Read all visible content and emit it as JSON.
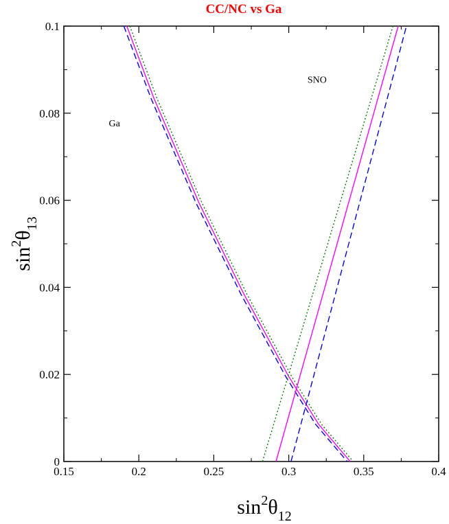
{
  "chart_data": {
    "type": "line",
    "title": "CC/NC vs Ga",
    "title_color": "#ff0000",
    "xlabel": {
      "base": "sin",
      "sup": "2",
      "sym": "θ",
      "sub": "12"
    },
    "ylabel": {
      "base": "sin",
      "sup": "2",
      "sym": "θ",
      "sub": "13"
    },
    "xlim": [
      0.15,
      0.4
    ],
    "ylim": [
      0,
      0.1
    ],
    "x_ticks": [
      0.15,
      0.2,
      0.25,
      0.3,
      0.35,
      0.4
    ],
    "x_tick_labels": [
      "0.15",
      "0.2",
      "0.25",
      "0.3",
      "0.35",
      "0.4"
    ],
    "y_ticks": [
      0,
      0.02,
      0.04,
      0.06,
      0.08,
      0.1
    ],
    "y_tick_labels": [
      "0",
      "0.02",
      "0.04",
      "0.06",
      "0.08",
      "0.1"
    ],
    "grid": false,
    "annotations": [
      {
        "text": "SNO",
        "x": 0.3125,
        "y": 0.087
      },
      {
        "text": "Ga",
        "x": 0.18,
        "y": 0.077
      }
    ],
    "series": [
      {
        "group": "Ga",
        "style": "solid",
        "color": "#ff00ff",
        "x": [
          0.192,
          0.21,
          0.24,
          0.27,
          0.3,
          0.32,
          0.341
        ],
        "y": [
          0.1,
          0.0835,
          0.0595,
          0.0385,
          0.0195,
          0.0085,
          0.0
        ]
      },
      {
        "group": "Ga",
        "style": "dashed",
        "color": "#0000ff",
        "x": [
          0.19,
          0.208,
          0.238,
          0.268,
          0.298,
          0.318,
          0.339
        ],
        "y": [
          0.1,
          0.0835,
          0.0595,
          0.0385,
          0.0195,
          0.0085,
          0.0
        ]
      },
      {
        "group": "Ga",
        "style": "dotted",
        "color": "#008000",
        "x": [
          0.194,
          0.212,
          0.242,
          0.272,
          0.302,
          0.322,
          0.343
        ],
        "y": [
          0.1,
          0.0835,
          0.0595,
          0.0385,
          0.0195,
          0.0085,
          0.0
        ]
      },
      {
        "group": "SNO",
        "style": "solid",
        "color": "#ff00ff",
        "x": [
          0.2915,
          0.373
        ],
        "y": [
          0.0,
          0.1
        ]
      },
      {
        "group": "SNO",
        "style": "dashed",
        "color": "#0000ff",
        "x": [
          0.3015,
          0.3785
        ],
        "y": [
          0.0,
          0.1
        ]
      },
      {
        "group": "SNO",
        "style": "dotted",
        "color": "#008000",
        "x": [
          0.2825,
          0.3695
        ],
        "y": [
          0.0,
          0.1
        ]
      }
    ]
  }
}
